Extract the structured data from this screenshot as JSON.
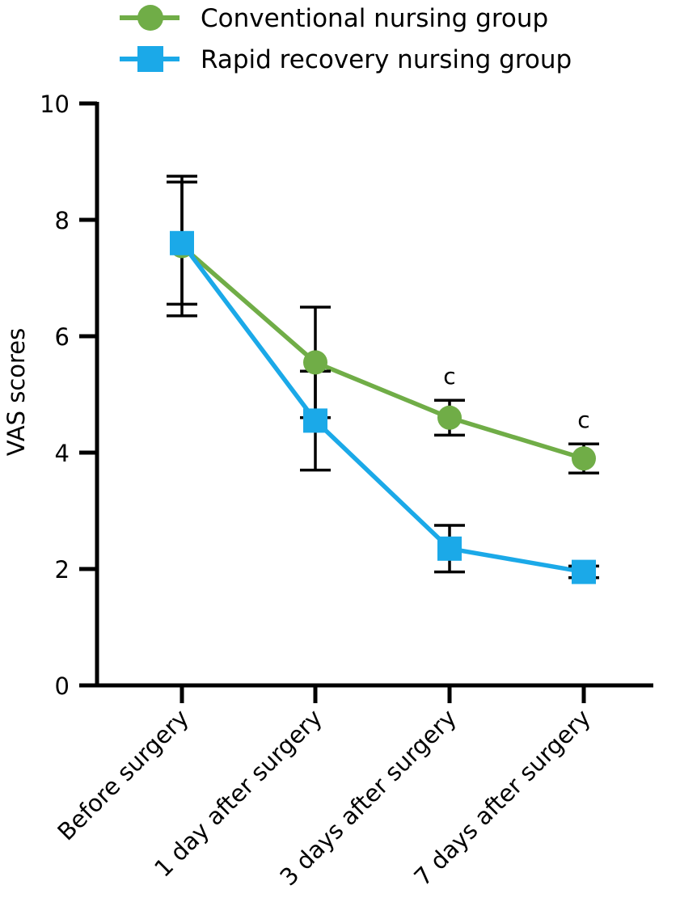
{
  "chart_data": {
    "type": "line",
    "title": "",
    "xlabel": "",
    "ylabel": "VAS scores",
    "ylim": [
      0,
      10
    ],
    "yticks": [
      0,
      2,
      4,
      6,
      8,
      10
    ],
    "categories": [
      "Before surgery",
      "1 day after surgery",
      "3 days after surgery",
      "7 days after surgery"
    ],
    "legend_position": "top",
    "grid": false,
    "series": [
      {
        "name": "Conventional nursing group",
        "color": "#70AD47",
        "marker": "circle",
        "values": [
          7.55,
          5.55,
          4.6,
          3.9
        ],
        "error": [
          1.2,
          0.95,
          0.3,
          0.25
        ]
      },
      {
        "name": "Rapid recovery nursing group",
        "color": "#1BA9E8",
        "marker": "square",
        "values": [
          7.6,
          4.55,
          2.35,
          1.95
        ],
        "error": [
          1.05,
          0.85,
          0.4,
          0.1
        ]
      }
    ],
    "annotations": [
      {
        "category_index": 2,
        "text": "c"
      },
      {
        "category_index": 3,
        "text": "c"
      }
    ]
  }
}
